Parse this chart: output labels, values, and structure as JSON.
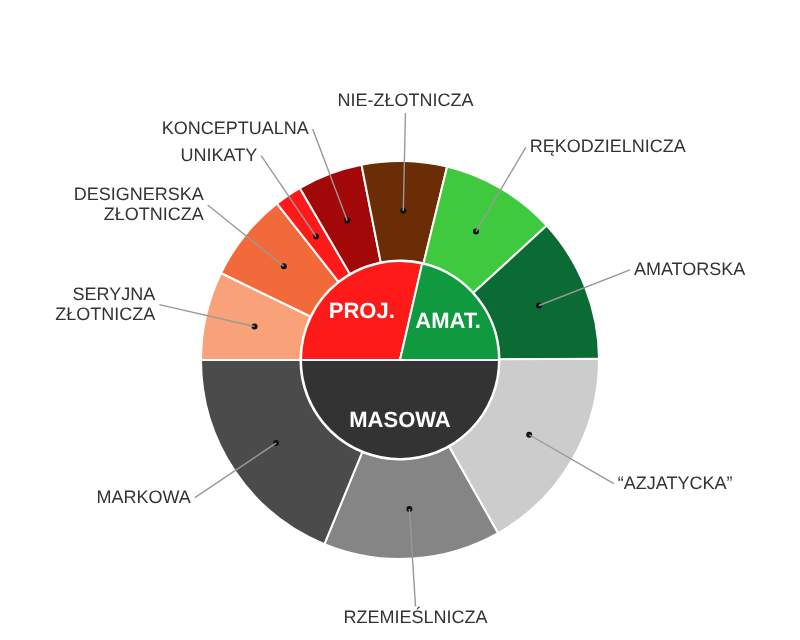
{
  "chart_data": [
    {
      "type": "donut",
      "categories": [
        "SERYJNA ZŁOTNICZA",
        "DESIGNERSKA ZŁOTNICZA",
        "UNIKATY",
        "KONCEPTUALNA",
        "NIE-ZŁOTNICZA",
        "RĘKODZIELNICZA",
        "AMATORSKA",
        "“AZJATYCKA”",
        "RZEMIEŚLNICZA",
        "MARKOWA"
      ],
      "values": [
        7.2,
        7.2,
        2.2,
        5.3,
        6.9,
        9.4,
        11.7,
        16.9,
        14.4,
        18.8
      ],
      "colors": [
        "#f9a27a",
        "#f26a3a",
        "#ff1a1a",
        "#a30808",
        "#6b2d06",
        "#3ec93e",
        "#0b6b35",
        "#cccccc",
        "#858585",
        "#4b4b4b"
      ]
    },
    {
      "type": "pie",
      "categories": [
        "PROJ.",
        "AMAT.",
        "MASOWA"
      ],
      "values": [
        28.6,
        21.4,
        50
      ],
      "colors": [
        "#ff1a1a",
        "#0f9a3f",
        "#333333"
      ]
    }
  ]
}
